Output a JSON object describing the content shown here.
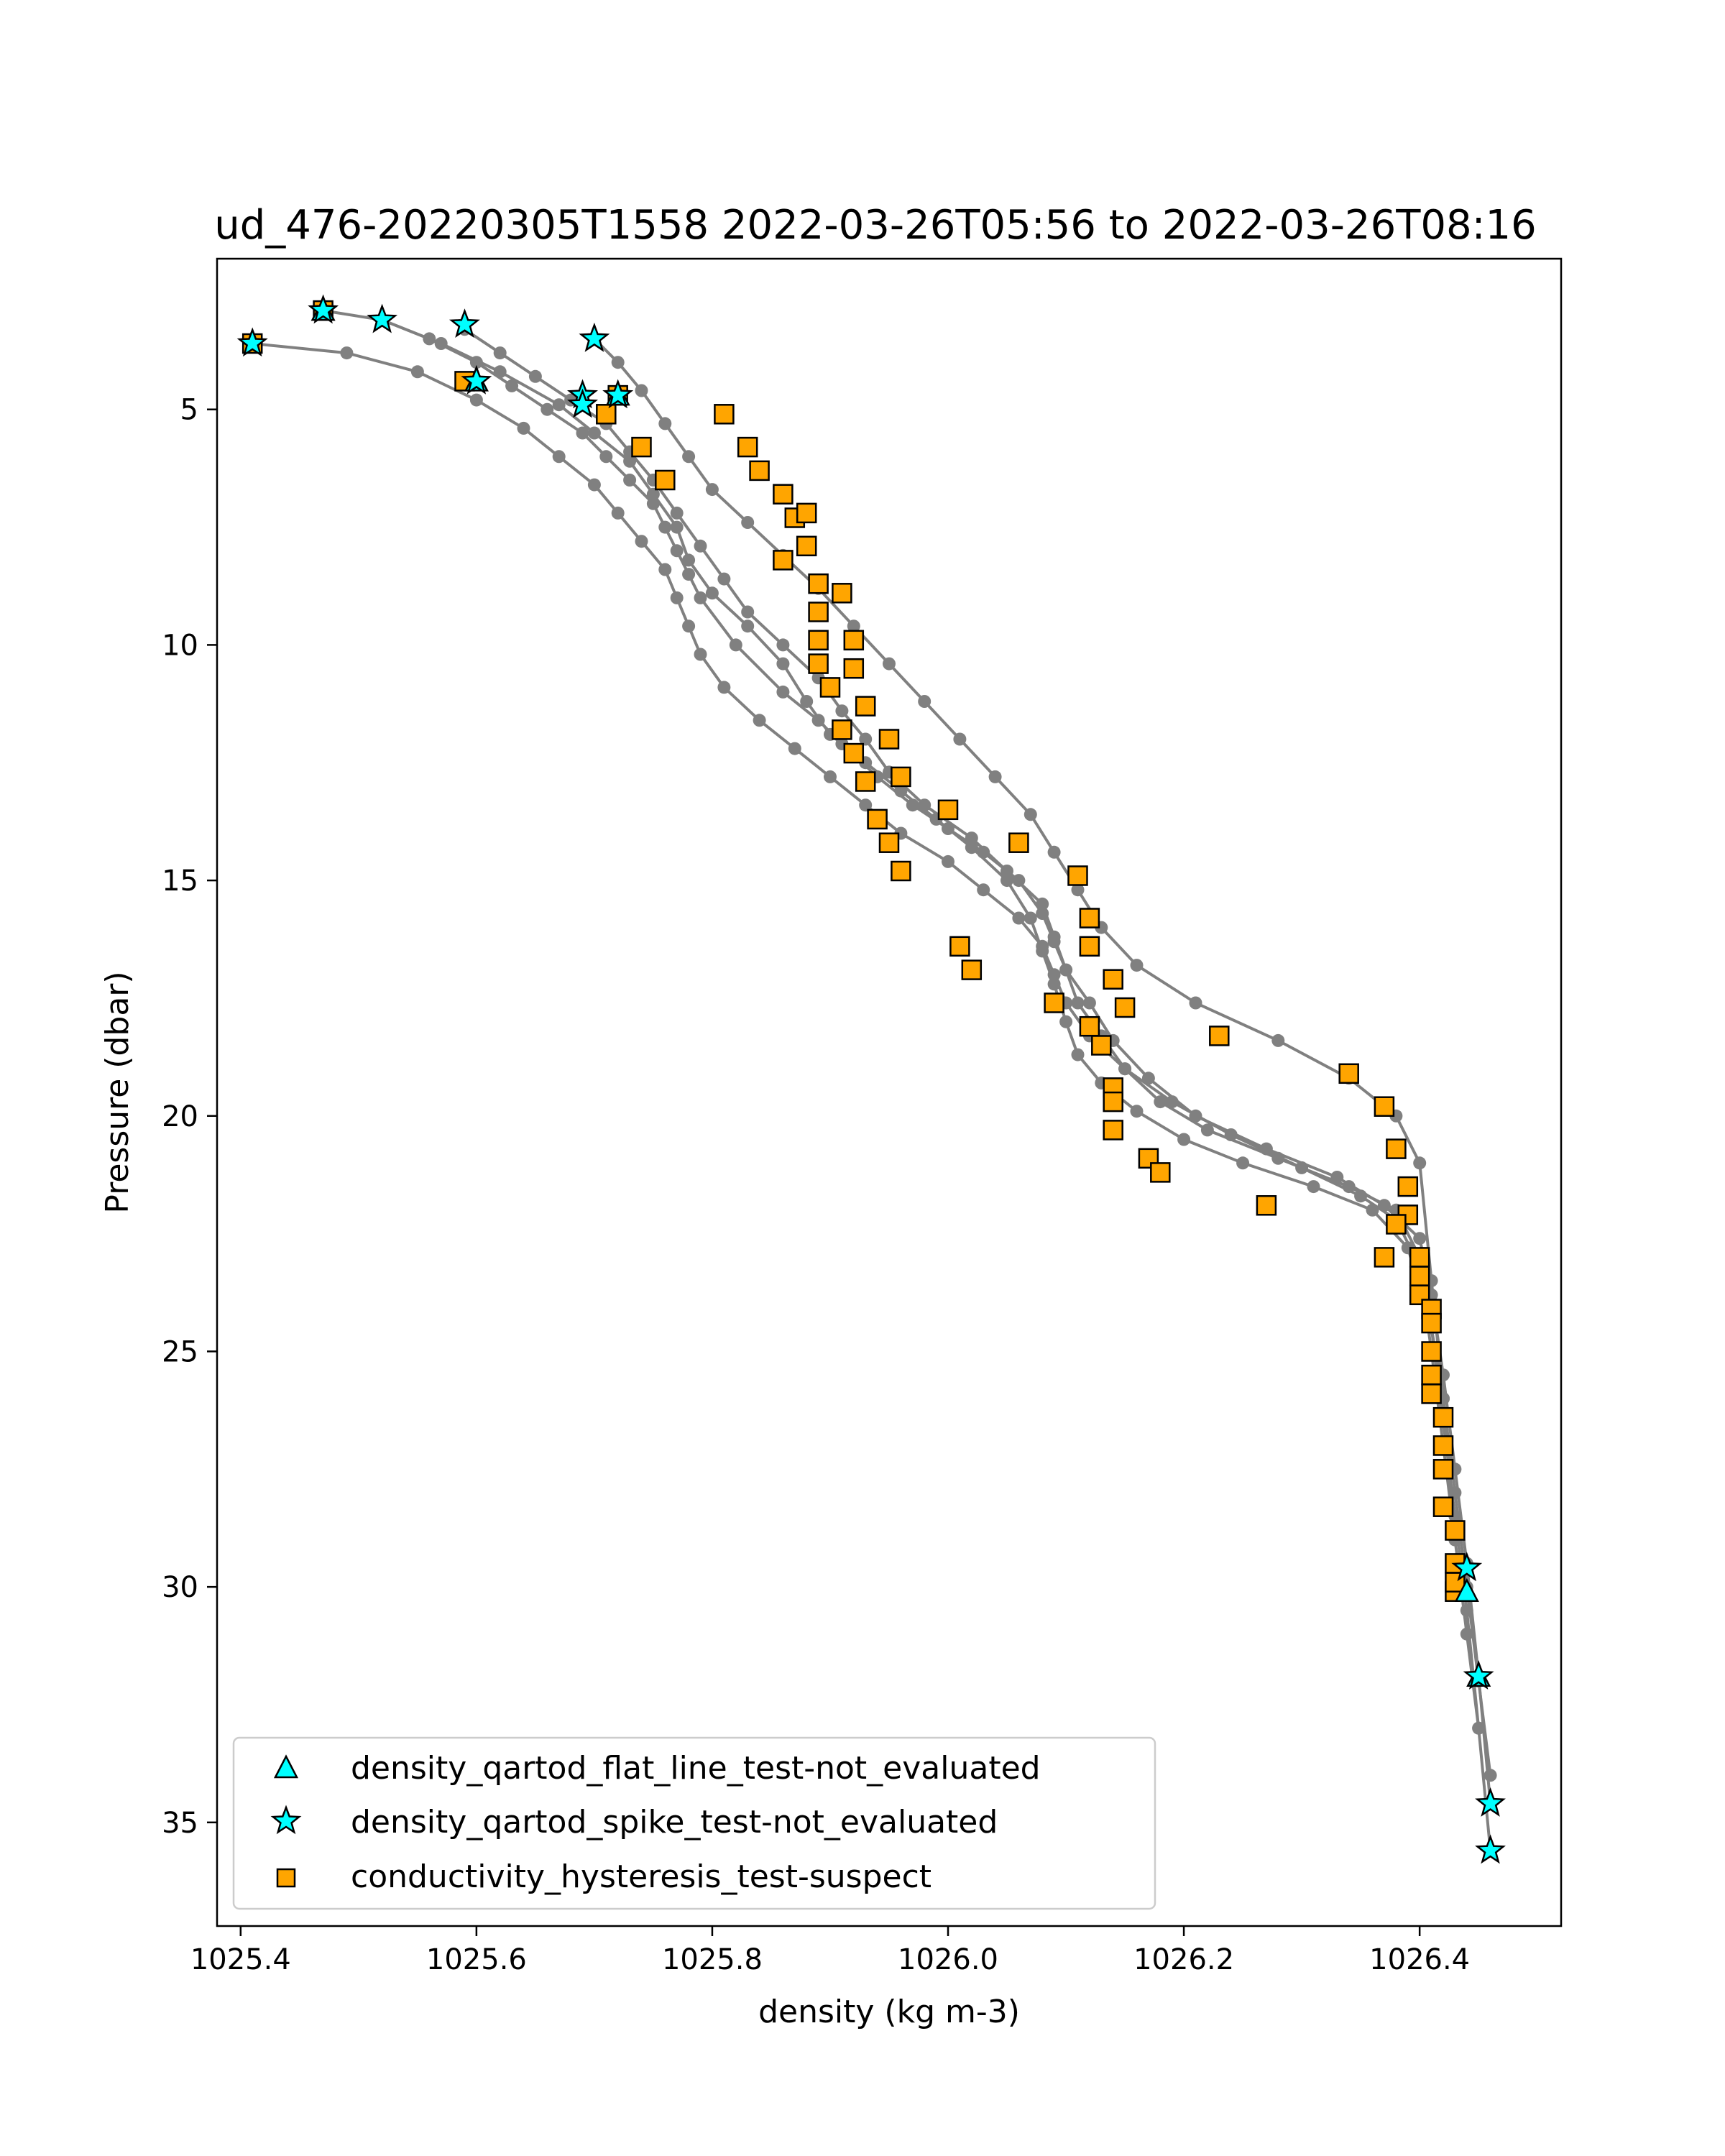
{
  "chart_data": {
    "type": "scatter",
    "title": "ud_476-20220305T1558 2022-03-26T05:56 to 2022-03-26T08:16",
    "xlabel": "density (kg m-3)",
    "ylabel": "Pressure (dbar)",
    "xlim": [
      1025.38,
      1026.52
    ],
    "ylim": [
      37.2,
      1.8
    ],
    "y_inverted": true,
    "xticks": [
      "1025.4",
      "1025.6",
      "1025.8",
      "1026.0",
      "1026.2",
      "1026.4"
    ],
    "yticks": [
      "5",
      "10",
      "15",
      "20",
      "25",
      "30",
      "35"
    ],
    "grid": false,
    "legend_position": "lower left",
    "colors": {
      "line": "#808080",
      "cyan": "#00ffff",
      "orange": "#ffa500",
      "edge": "#000000"
    },
    "legend": [
      {
        "label": "density_qartod_flat_line_test-not_evaluated",
        "marker": "triangle"
      },
      {
        "label": "density_qartod_spike_test-not_evaluated",
        "marker": "star"
      },
      {
        "label": "conductivity_hysteresis_test-suspect",
        "marker": "square"
      }
    ],
    "profiles": [
      {
        "x": [
          1025.47,
          1025.52,
          1025.56,
          1025.6,
          1025.63,
          1025.66,
          1025.69,
          1025.71,
          1025.73,
          1025.75,
          1025.76,
          1025.77,
          1025.78,
          1025.79,
          1025.82,
          1025.86,
          1025.89,
          1025.91,
          1025.94,
          1025.97,
          1026.0,
          1026.03,
          1026.06,
          1026.08,
          1026.09,
          1026.1,
          1026.11,
          1026.13,
          1026.15,
          1026.18,
          1026.22,
          1026.28,
          1026.34,
          1026.38,
          1026.4,
          1026.41,
          1026.42,
          1026.43,
          1026.44,
          1026.45,
          1026.46
        ],
        "y": [
          2.9,
          3.1,
          3.5,
          4.0,
          4.5,
          5.0,
          5.5,
          6.0,
          6.5,
          7.0,
          7.5,
          8.0,
          8.5,
          9.0,
          10.0,
          11.0,
          11.6,
          12.1,
          12.8,
          13.4,
          13.9,
          14.4,
          15.0,
          15.7,
          16.3,
          16.9,
          17.6,
          18.3,
          19.0,
          19.7,
          20.3,
          20.9,
          21.5,
          22.0,
          23.0,
          24.5,
          26.0,
          28.0,
          30.0,
          32.0,
          34.0
        ]
      },
      {
        "x": [
          1025.52,
          1025.57,
          1025.62,
          1025.67,
          1025.7,
          1025.73,
          1025.75,
          1025.77,
          1025.78,
          1025.8,
          1025.83,
          1025.86,
          1025.88,
          1025.9,
          1025.93,
          1025.96,
          1025.99,
          1026.02,
          1026.05,
          1026.07,
          1026.08,
          1026.09,
          1026.1,
          1026.11,
          1026.13,
          1026.16,
          1026.2,
          1026.25,
          1026.31,
          1026.36,
          1026.39,
          1026.41,
          1026.42,
          1026.43,
          1026.44,
          1026.45,
          1026.46
        ],
        "y": [
          3.1,
          3.6,
          4.2,
          4.9,
          5.5,
          6.1,
          6.8,
          7.5,
          8.2,
          8.9,
          9.6,
          10.4,
          11.2,
          11.9,
          12.5,
          13.1,
          13.7,
          14.3,
          15.0,
          15.8,
          16.5,
          17.2,
          18.0,
          18.7,
          19.3,
          19.9,
          20.5,
          21.0,
          21.5,
          22.0,
          22.8,
          24.5,
          26.5,
          28.5,
          30.5,
          33.0,
          35.6
        ]
      },
      {
        "x": [
          1025.59,
          1025.62,
          1025.65,
          1025.68,
          1025.71,
          1025.73,
          1025.75,
          1025.77,
          1025.79,
          1025.81,
          1025.83,
          1025.86,
          1025.89,
          1025.91,
          1025.93,
          1025.95,
          1025.98,
          1026.02,
          1026.05,
          1026.08,
          1026.09,
          1026.1,
          1026.12,
          1026.14,
          1026.17,
          1026.21,
          1026.27,
          1026.33,
          1026.37,
          1026.4,
          1026.41,
          1026.42,
          1026.43,
          1026.44,
          1026.45,
          1026.46
        ],
        "y": [
          3.3,
          3.8,
          4.3,
          4.8,
          5.3,
          5.9,
          6.5,
          7.2,
          7.9,
          8.6,
          9.3,
          10.0,
          10.7,
          11.4,
          12.0,
          12.7,
          13.4,
          14.1,
          14.8,
          15.5,
          16.2,
          16.9,
          17.6,
          18.4,
          19.2,
          20.0,
          20.7,
          21.3,
          21.9,
          22.6,
          23.8,
          25.5,
          27.5,
          29.5,
          31.9,
          34.6
        ]
      },
      {
        "x": [
          1025.41,
          1025.49,
          1025.55,
          1025.6,
          1025.64,
          1025.67,
          1025.7,
          1025.72,
          1025.74,
          1025.76,
          1025.77,
          1025.78,
          1025.79,
          1025.81,
          1025.84,
          1025.87,
          1025.9,
          1025.93,
          1025.96,
          1026.0,
          1026.03,
          1026.06,
          1026.08,
          1026.09,
          1026.1,
          1026.12,
          1026.15,
          1026.19,
          1026.24,
          1026.3,
          1026.35,
          1026.38,
          1026.4,
          1026.41,
          1026.42,
          1026.43,
          1026.44,
          1026.45
        ],
        "y": [
          3.6,
          3.8,
          4.2,
          4.8,
          5.4,
          6.0,
          6.6,
          7.2,
          7.8,
          8.4,
          9.0,
          9.6,
          10.2,
          10.9,
          11.6,
          12.2,
          12.8,
          13.4,
          14.0,
          14.6,
          15.2,
          15.8,
          16.4,
          17.0,
          17.6,
          18.3,
          19.0,
          19.7,
          20.4,
          21.1,
          21.7,
          22.2,
          23.2,
          25.0,
          27.0,
          29.0,
          31.0,
          33.0
        ]
      },
      {
        "x": [
          1025.7,
          1025.72,
          1025.74,
          1025.76,
          1025.78,
          1025.8,
          1025.83,
          1025.86,
          1025.89,
          1025.92,
          1025.95,
          1025.98,
          1026.01,
          1026.04,
          1026.07,
          1026.09,
          1026.11,
          1026.13,
          1026.16,
          1026.21,
          1026.28,
          1026.34,
          1026.38,
          1026.4,
          1026.41,
          1026.42,
          1026.43
        ],
        "y": [
          3.5,
          4.0,
          4.6,
          5.3,
          6.0,
          6.7,
          7.4,
          8.1,
          8.8,
          9.6,
          10.4,
          11.2,
          12.0,
          12.8,
          13.6,
          14.4,
          15.2,
          16.0,
          16.8,
          17.6,
          18.4,
          19.2,
          20.0,
          21.0,
          23.5,
          26.0,
          29.0
        ]
      }
    ],
    "suspect_squares": {
      "x": [
        1025.41,
        1025.47,
        1025.59,
        1025.72,
        1025.71,
        1025.74,
        1025.76,
        1025.81,
        1025.83,
        1025.84,
        1025.86,
        1025.87,
        1025.88,
        1025.88,
        1025.86,
        1025.89,
        1025.91,
        1025.89,
        1025.89,
        1025.89,
        1025.9,
        1025.92,
        1025.92,
        1025.93,
        1025.91,
        1025.95,
        1025.92,
        1025.96,
        1025.93,
        1025.94,
        1025.95,
        1025.96,
        1026.0,
        1026.01,
        1026.02,
        1026.06,
        1026.09,
        1026.11,
        1026.12,
        1026.12,
        1026.14,
        1026.15,
        1026.12,
        1026.13,
        1026.14,
        1026.14,
        1026.14,
        1026.17,
        1026.18,
        1026.23,
        1026.27,
        1026.34,
        1026.37,
        1026.38,
        1026.39,
        1026.39,
        1026.38,
        1026.37,
        1026.4,
        1026.4,
        1026.4,
        1026.41,
        1026.41,
        1026.41,
        1026.41,
        1026.41,
        1026.42,
        1026.42,
        1026.42,
        1026.42,
        1026.43,
        1026.43,
        1026.43,
        1026.43
      ],
      "y": [
        3.6,
        2.9,
        4.4,
        4.7,
        5.1,
        5.8,
        6.5,
        5.1,
        5.8,
        6.3,
        6.8,
        7.3,
        7.2,
        7.9,
        8.2,
        8.7,
        8.9,
        9.3,
        9.9,
        10.4,
        10.9,
        9.9,
        10.5,
        11.3,
        11.8,
        12.0,
        12.3,
        12.8,
        12.9,
        13.7,
        14.2,
        14.8,
        13.5,
        16.4,
        16.9,
        14.2,
        17.6,
        14.9,
        15.8,
        16.4,
        17.1,
        17.7,
        18.1,
        18.5,
        19.4,
        19.7,
        20.3,
        20.9,
        21.2,
        18.3,
        21.9,
        19.1,
        19.8,
        20.7,
        21.5,
        22.1,
        22.3,
        23.0,
        23.0,
        23.4,
        23.8,
        24.1,
        24.4,
        25.0,
        25.5,
        25.9,
        26.4,
        27.0,
        27.5,
        28.3,
        28.8,
        29.5,
        30.1,
        29.9
      ]
    },
    "spike_stars": {
      "x": [
        1025.41,
        1025.47,
        1025.52,
        1025.59,
        1025.7,
        1025.69,
        1025.69,
        1025.72,
        1025.6,
        1026.44,
        1026.45,
        1026.46,
        1026.46
      ],
      "y": [
        3.6,
        2.9,
        3.1,
        3.2,
        3.5,
        4.7,
        4.9,
        4.7,
        4.4,
        29.6,
        31.9,
        34.6,
        35.6
      ]
    },
    "flatline_triangles": {
      "x": [
        1025.47,
        1025.6,
        1025.72,
        1026.44,
        1026.45
      ],
      "y": [
        2.9,
        4.4,
        4.7,
        30.1,
        31.9
      ]
    }
  }
}
